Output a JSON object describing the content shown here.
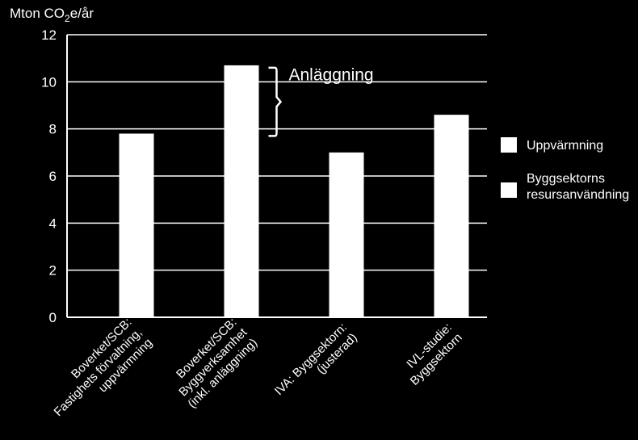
{
  "chart_data": {
    "type": "bar",
    "ylabel_prefix": "Mton CO",
    "ylabel_sub": "2",
    "ylabel_suffix": "e/år",
    "ylim": [
      0,
      12
    ],
    "yticks": [
      0,
      2,
      4,
      6,
      8,
      10,
      12
    ],
    "grid": true,
    "categories": [
      [
        "Boverket/SCB:",
        "Fastighets förvaltning,",
        "uppvärmning"
      ],
      [
        "Boverket/SCB:",
        "Byggverksamhet",
        "(inkl. anläggning)"
      ],
      [
        "IVA: Byggsektorn:",
        "(justerad)"
      ],
      [
        "IVL-studie:",
        "Byggsektorn"
      ]
    ],
    "values": [
      7.8,
      10.7,
      7.0,
      8.6
    ],
    "series": [
      {
        "name": "Uppvärmning",
        "color": "#ffffff"
      },
      {
        "name": "Byggsektorns resursanvändning",
        "lines": [
          "Byggsektorns",
          "resursanvändning"
        ],
        "color": "#ffffff"
      }
    ],
    "annotation": {
      "text": "Anläggning",
      "from": 7.7,
      "to": 10.6,
      "bar_index": 1
    },
    "legend_position": "right",
    "colors": {
      "background": "#000000",
      "bar": "#ffffff",
      "grid": "#ffffff",
      "text": "#ffffff"
    }
  }
}
